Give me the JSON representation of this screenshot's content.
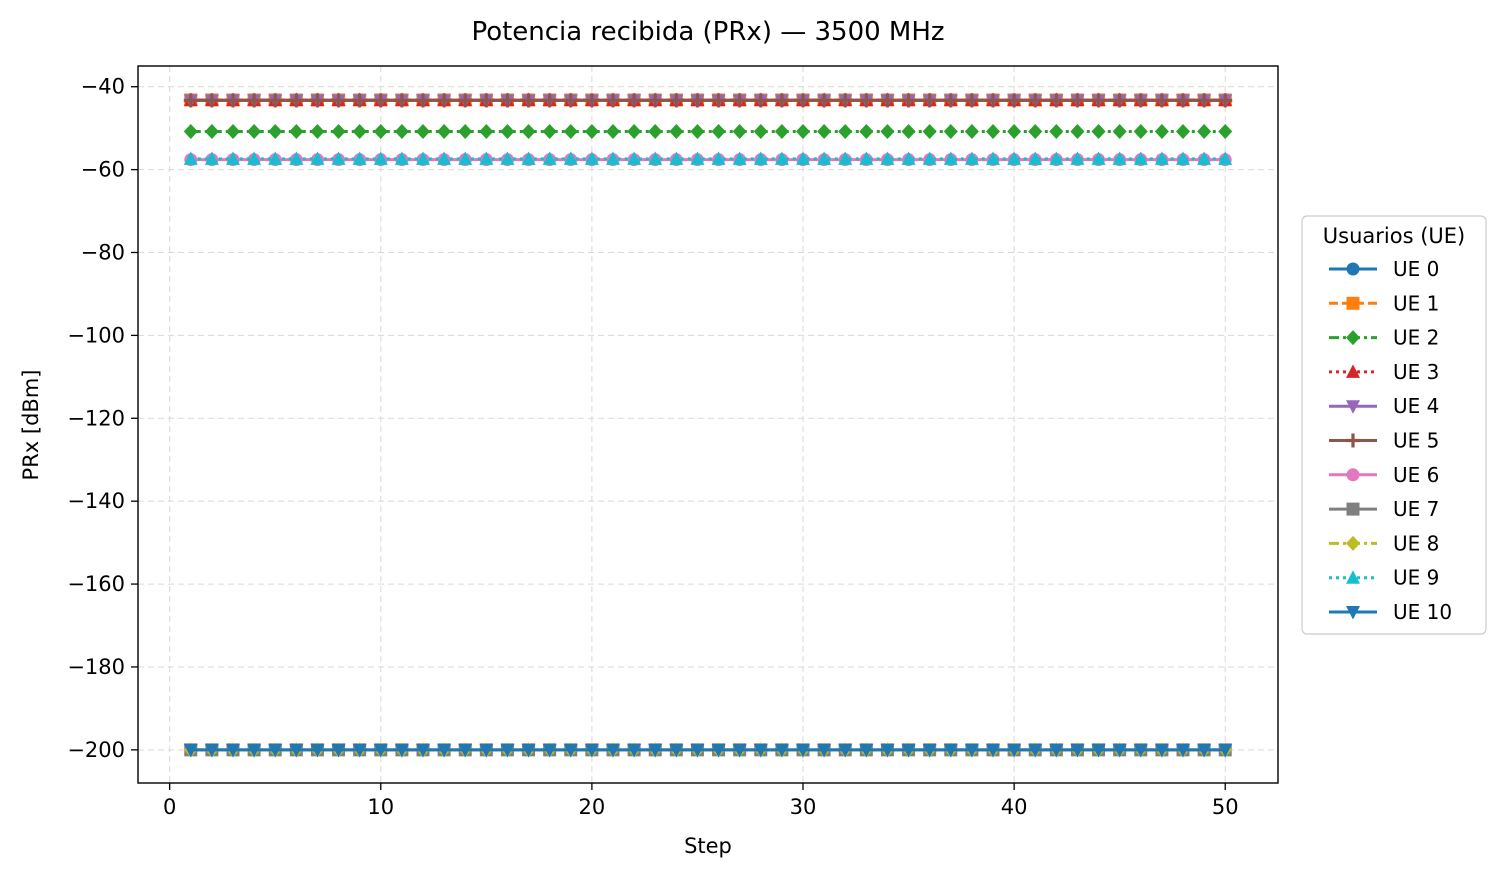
{
  "chart_data": {
    "type": "line",
    "title": "Potencia recibida (PRx) — 3500 MHz",
    "xlabel": "Step",
    "ylabel": "PRx [dBm]",
    "xlim": [
      -1.5,
      52.5
    ],
    "ylim": [
      -208,
      -35
    ],
    "xticks": [
      0,
      10,
      20,
      30,
      40,
      50
    ],
    "xtick_labels": [
      "0",
      "10",
      "20",
      "30",
      "40",
      "50"
    ],
    "yticks": [
      -40,
      -60,
      -80,
      -100,
      -120,
      -140,
      -160,
      -180,
      -200
    ],
    "ytick_labels": [
      "−40",
      "−60",
      "−80",
      "−100",
      "−120",
      "−140",
      "−160",
      "−180",
      "−200"
    ],
    "grid": true,
    "legend": {
      "title": "Usuarios (UE)",
      "placement": "center-right outside"
    },
    "x": [
      1,
      2,
      3,
      4,
      5,
      6,
      7,
      8,
      9,
      10,
      11,
      12,
      13,
      14,
      15,
      16,
      17,
      18,
      19,
      20,
      21,
      22,
      23,
      24,
      25,
      26,
      27,
      28,
      29,
      30,
      31,
      32,
      33,
      34,
      35,
      36,
      37,
      38,
      39,
      40,
      41,
      42,
      43,
      44,
      45,
      46,
      47,
      48,
      49,
      50
    ],
    "series": [
      {
        "name": "UE 0",
        "constant_value": -43.2,
        "color": "#1f77b4",
        "marker": "circle",
        "linestyle": "solid"
      },
      {
        "name": "UE 1",
        "constant_value": -43.2,
        "color": "#ff7f0e",
        "marker": "square",
        "linestyle": "dashed"
      },
      {
        "name": "UE 2",
        "constant_value": -50.8,
        "color": "#2ca02c",
        "marker": "diamond",
        "linestyle": "dashdot"
      },
      {
        "name": "UE 3",
        "constant_value": -43.2,
        "color": "#d62728",
        "marker": "triangle-up",
        "linestyle": "dotted"
      },
      {
        "name": "UE 4",
        "constant_value": -43.3,
        "color": "#9467bd",
        "marker": "triangle-down",
        "linestyle": "solid"
      },
      {
        "name": "UE 5",
        "constant_value": -43.3,
        "color": "#8c564b",
        "marker": "plus",
        "linestyle": "solid"
      },
      {
        "name": "UE 6",
        "constant_value": -57.6,
        "color": "#e377c2",
        "marker": "circle",
        "linestyle": "solid"
      },
      {
        "name": "UE 7",
        "constant_value": -200,
        "color": "#7f7f7f",
        "marker": "square",
        "linestyle": "solid"
      },
      {
        "name": "UE 8",
        "constant_value": -200,
        "color": "#bcbd22",
        "marker": "diamond",
        "linestyle": "dashdot"
      },
      {
        "name": "UE 9",
        "constant_value": -57.4,
        "color": "#17becf",
        "marker": "triangle-up",
        "linestyle": "dotted"
      },
      {
        "name": "UE 10",
        "constant_value": -200,
        "color": "#1f77b4",
        "marker": "triangle-down",
        "linestyle": "solid"
      }
    ]
  }
}
